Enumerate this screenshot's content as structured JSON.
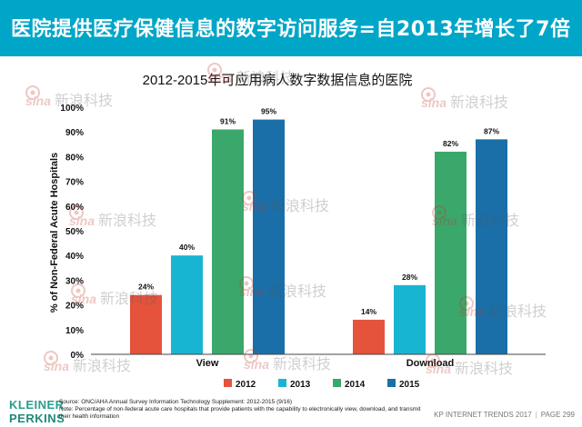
{
  "header": {
    "title": "医院提供医疗保健信息的数字访问服务=自2013年增长了7倍"
  },
  "chart_data": {
    "type": "bar",
    "title": "2012-2015年可应用病人数字数据信息的医院",
    "ylabel": "% of Non-Federal Acute Hospitals",
    "xlabel": "",
    "categories": [
      "View",
      "Download"
    ],
    "series": [
      {
        "name": "2012",
        "values": [
          24,
          14
        ],
        "color": "#e5533c"
      },
      {
        "name": "2013",
        "values": [
          40,
          28
        ],
        "color": "#18b5d2"
      },
      {
        "name": "2014",
        "values": [
          91,
          82
        ],
        "color": "#3aa86b"
      },
      {
        "name": "2015",
        "values": [
          95,
          87
        ],
        "color": "#1a6fa8"
      }
    ],
    "value_labels": [
      "24%",
      "40%",
      "91%",
      "95%",
      "14%",
      "28%",
      "82%",
      "87%"
    ],
    "ylim": [
      0,
      100
    ],
    "yticks": [
      "0%",
      "10%",
      "20%",
      "30%",
      "40%",
      "50%",
      "60%",
      "70%",
      "80%",
      "90%",
      "100%"
    ],
    "grid": false,
    "legend_position": "bottom"
  },
  "watermark": {
    "text": "新浪科技",
    "logo": "sina"
  },
  "footer": {
    "brand_line1": "KLEINER",
    "brand_line2": "PERKINS",
    "source": "Source: ONC/AHA Annual Survey Information Technology Supplement: 2012-2015 (9/16)",
    "note": "Note: Percentage of non-federal acute care hospitals that provide patients with the capability to electronically view, download, and transmit their health information",
    "report": "KP INTERNET TRENDS 2017",
    "page": "PAGE 299"
  }
}
